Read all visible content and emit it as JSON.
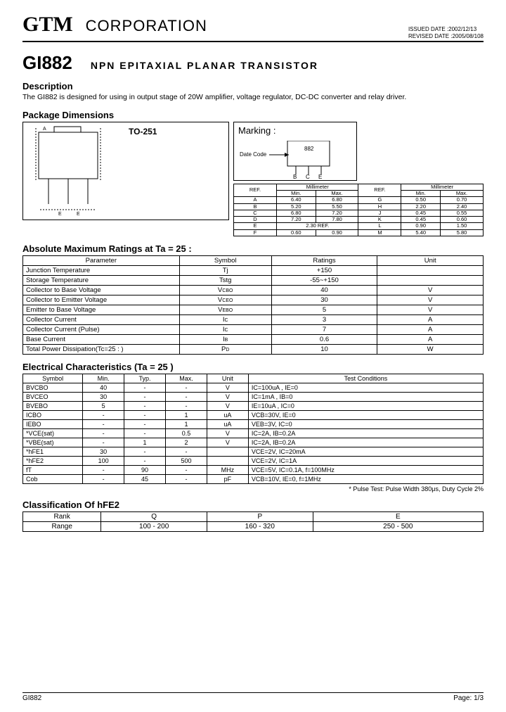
{
  "header": {
    "brand": "GTM",
    "corp": "CORPORATION",
    "issued_label": "ISSUED DATE",
    "issued_value": ":2002/12/13",
    "revised_label": "REVISED DATE",
    "revised_value": ":2005/08/108"
  },
  "part": {
    "number": "GI882",
    "title": "NPN EPITAXIAL PLANAR TRANSISTOR"
  },
  "description": {
    "heading": "Description",
    "text": "The GI882 is designed for using in output stage of 20W amplifier, voltage regulator, DC-DC converter and relay driver."
  },
  "package": {
    "heading": "Package Dimensions",
    "type_label": "TO-251",
    "marking_label": "Marking :",
    "date_code_label": "Date Code",
    "marking_value": "882",
    "pins": [
      "B",
      "C",
      "E"
    ],
    "dim_table": {
      "headers": [
        "REF.",
        "Millimeter",
        "REF.",
        "Millimeter"
      ],
      "subheaders": [
        "Min.",
        "Max.",
        "Min.",
        "Max."
      ],
      "rows": [
        [
          "A",
          "6.40",
          "6.80",
          "G",
          "0.50",
          "0.70"
        ],
        [
          "B",
          "5.20",
          "5.50",
          "H",
          "2.20",
          "2.40"
        ],
        [
          "C",
          "6.80",
          "7.20",
          "J",
          "0.45",
          "0.55"
        ],
        [
          "D",
          "7.20",
          "7.80",
          "K",
          "0.45",
          "0.60"
        ],
        [
          "E",
          "2.30 REF.",
          "",
          "L",
          "0.90",
          "1.50"
        ],
        [
          "F",
          "0.60",
          "0.90",
          "M",
          "5.40",
          "5.80"
        ]
      ]
    }
  },
  "ratings": {
    "heading": "Absolute Maximum Ratings at Ta = 25 :",
    "columns": [
      "Parameter",
      "Symbol",
      "Ratings",
      "Unit"
    ],
    "rows": [
      [
        "Junction Temperature",
        "Tj",
        "+150",
        ""
      ],
      [
        "Storage Temperature",
        "Tstg",
        "-55~+150",
        ""
      ],
      [
        "Collector to Base Voltage",
        "V",
        "40",
        "V"
      ],
      [
        "Collector to Emitter Voltage",
        "V",
        "30",
        "V"
      ],
      [
        "Emitter to Base Voltage",
        "V",
        "5",
        "V"
      ],
      [
        "Collector Current",
        "I",
        "3",
        "A"
      ],
      [
        "Collector Current (Pulse)",
        "I",
        "7",
        "A"
      ],
      [
        "Base Current",
        "I",
        "0.6",
        "A"
      ],
      [
        "Total Power Dissipation(Tc=25 : )",
        "P",
        "10",
        "W"
      ]
    ],
    "symbol_sub": [
      "",
      "",
      "CBO",
      "CEO",
      "EBO",
      "C",
      "C",
      "B",
      "D"
    ]
  },
  "electrical": {
    "heading": "Electrical Characteristics (Ta = 25    )",
    "columns": [
      "Symbol",
      "Min.",
      "Typ.",
      "Max.",
      "Unit",
      "Test Conditions"
    ],
    "rows": [
      [
        "BVCBO",
        "40",
        "-",
        "-",
        "V",
        "IC=100uA , IE=0"
      ],
      [
        "BVCEO",
        "30",
        "-",
        "-",
        "V",
        "IC=1mA , IB=0"
      ],
      [
        "BVEBO",
        "5",
        "-",
        "-",
        "V",
        "IE=10uA , IC=0"
      ],
      [
        "ICBO",
        "-",
        "-",
        "1",
        "uA",
        "VCB=30V, IE=0"
      ],
      [
        "IEBO",
        "-",
        "-",
        "1",
        "uA",
        "VEB=3V, IC=0"
      ],
      [
        "*VCE(sat)",
        "-",
        "-",
        "0.5",
        "V",
        "IC=2A, IB=0.2A"
      ],
      [
        "*VBE(sat)",
        "-",
        "1",
        "2",
        "V",
        "IC=2A, IB=0.2A"
      ],
      [
        "*hFE1",
        "30",
        "-",
        "-",
        "",
        "VCE=2V, IC=20mA"
      ],
      [
        "*hFE2",
        "100",
        "-",
        "500",
        "",
        "VCE=2V, IC=1A"
      ],
      [
        "fT",
        "-",
        "90",
        "-",
        "MHz",
        "VCE=5V, IC=0.1A, f=100MHz"
      ],
      [
        "Cob",
        "-",
        "45",
        "-",
        "pF",
        "VCB=10V, IE=0, f=1MHz"
      ]
    ],
    "footnote": "* Pulse Test: Pulse Width    380μs, Duty Cycle    2%"
  },
  "hfe": {
    "heading": "Classification Of hFE2",
    "columns": [
      "Rank",
      "Q",
      "P",
      "E"
    ],
    "row_label": "Range",
    "row": [
      "100 - 200",
      "160 - 320",
      "250 - 500"
    ]
  },
  "footer": {
    "left": "GI882",
    "right": "Page: 1/3"
  },
  "colors": {
    "text": "#000000",
    "bg": "#ffffff",
    "border": "#000000"
  }
}
